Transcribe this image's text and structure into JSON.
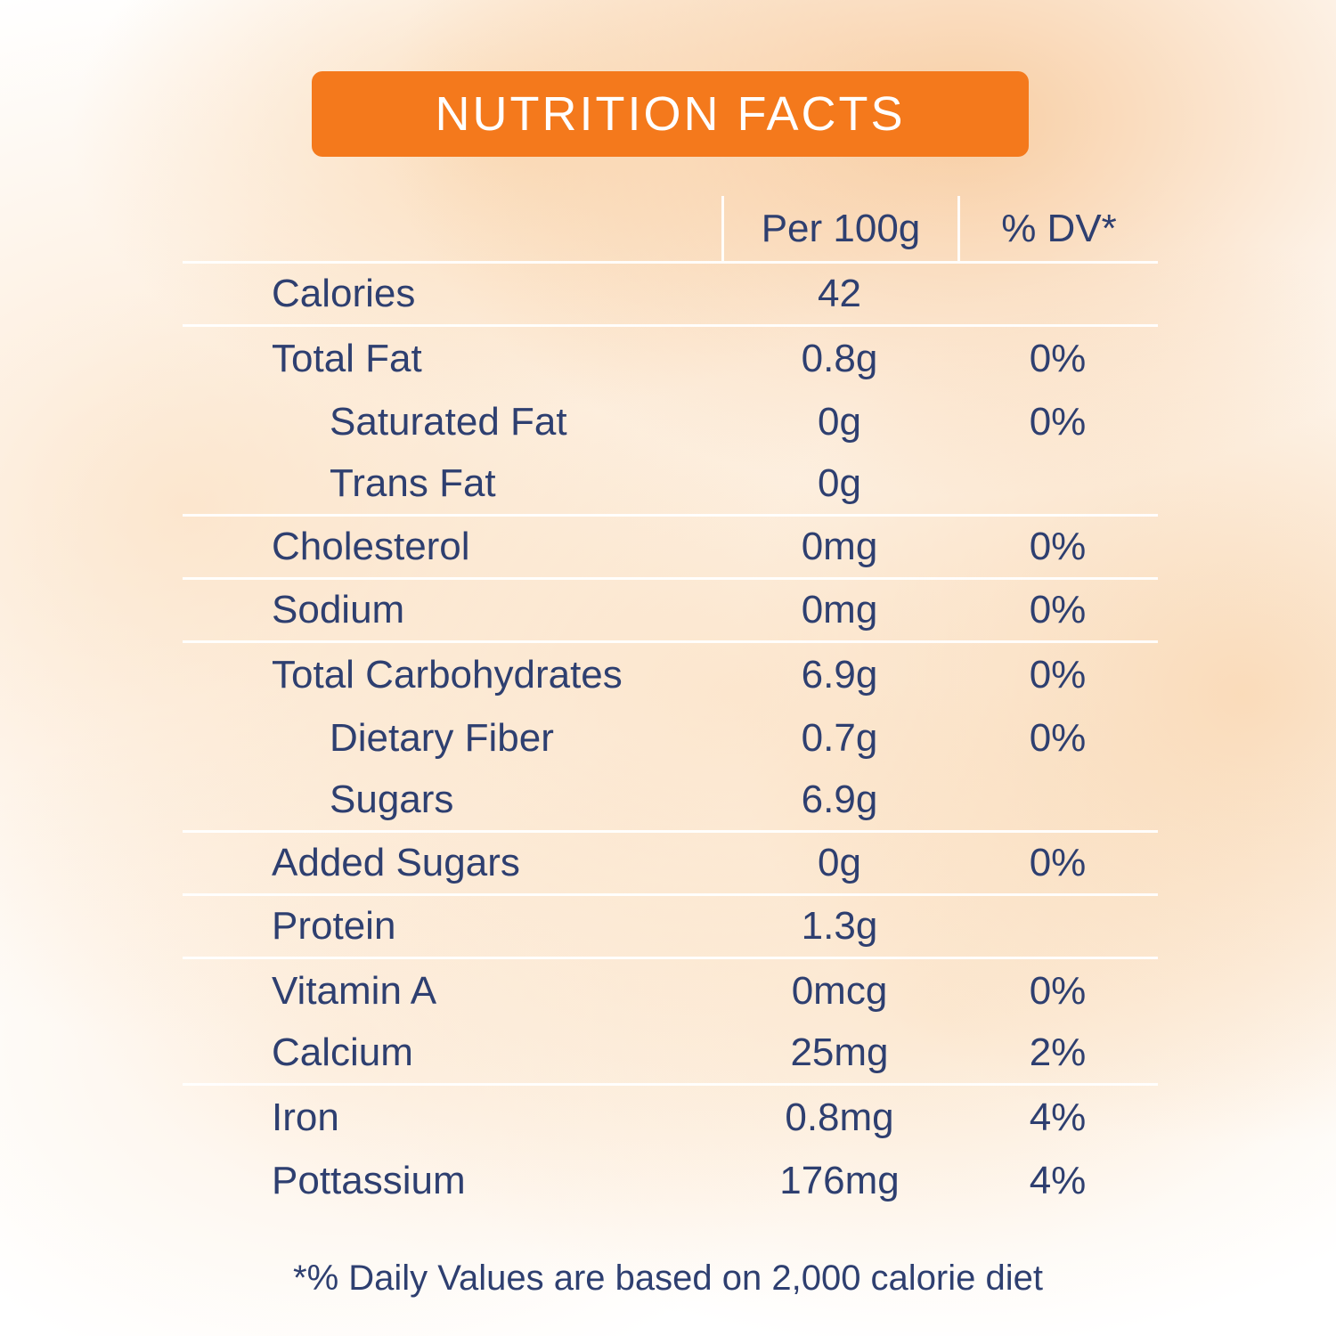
{
  "header": {
    "title": "NUTRITION FACTS"
  },
  "colors": {
    "accent": "#F4791C",
    "text": "#2E3F70",
    "divider": "#FFFFFF"
  },
  "table": {
    "columns": {
      "per": "Per 100g",
      "dv": "% DV*"
    },
    "rows": [
      {
        "label": "Calories",
        "value": "42",
        "dv": "",
        "indent": false,
        "divider": true
      },
      {
        "label": "Total Fat",
        "value": "0.8g",
        "dv": "0%",
        "indent": false,
        "divider": false
      },
      {
        "label": "Saturated Fat",
        "value": "0g",
        "dv": "0%",
        "indent": true,
        "divider": false
      },
      {
        "label": "Trans Fat",
        "value": "0g",
        "dv": "",
        "indent": true,
        "divider": true
      },
      {
        "label": "Cholesterol",
        "value": "0mg",
        "dv": "0%",
        "indent": false,
        "divider": true
      },
      {
        "label": "Sodium",
        "value": "0mg",
        "dv": "0%",
        "indent": false,
        "divider": true
      },
      {
        "label": "Total Carbohydrates",
        "value": "6.9g",
        "dv": "0%",
        "indent": false,
        "divider": false
      },
      {
        "label": "Dietary Fiber",
        "value": "0.7g",
        "dv": "0%",
        "indent": true,
        "divider": false
      },
      {
        "label": "Sugars",
        "value": "6.9g",
        "dv": "",
        "indent": true,
        "divider": true
      },
      {
        "label": "Added Sugars",
        "value": "0g",
        "dv": "0%",
        "indent": false,
        "divider": true
      },
      {
        "label": "Protein",
        "value": "1.3g",
        "dv": "",
        "indent": false,
        "divider": true
      },
      {
        "label": "Vitamin A",
        "value": "0mcg",
        "dv": "0%",
        "indent": false,
        "divider": false
      },
      {
        "label": "Calcium",
        "value": "25mg",
        "dv": "2%",
        "indent": false,
        "divider": true
      },
      {
        "label": "Iron",
        "value": "0.8mg",
        "dv": "4%",
        "indent": false,
        "divider": false
      },
      {
        "label": "Pottassium",
        "value": "176mg",
        "dv": "4%",
        "indent": false,
        "divider": false
      }
    ]
  },
  "footnote": "*% Daily Values are based on 2,000 calorie diet"
}
